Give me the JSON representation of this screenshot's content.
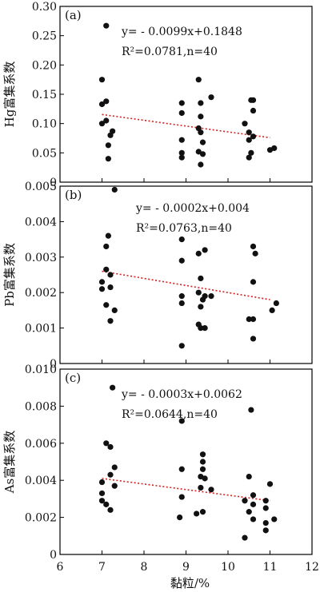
{
  "chart_data": [
    {
      "type": "scatter",
      "panel_label": "(a)",
      "ylabel": "Hg富集系数",
      "xlim": [
        6,
        12
      ],
      "ylim": [
        0,
        0.3
      ],
      "yticks": [
        "0.30",
        "0.25",
        "0.20",
        "0.15",
        "0.10",
        "0.05",
        "0"
      ],
      "yticks_values": [
        0.3,
        0.25,
        0.2,
        0.15,
        0.1,
        0.05,
        0
      ],
      "equation_line1": "y= - 0.0099x+0.1848",
      "equation_line2": "R²=0.0781,n=40",
      "trend": {
        "slope": -0.0099,
        "intercept": 0.1848,
        "x_start": 7.0,
        "x_end": 11.0
      },
      "points": [
        {
          "x": 7.1,
          "y": 0.267
        },
        {
          "x": 7.0,
          "y": 0.175
        },
        {
          "x": 7.0,
          "y": 0.133
        },
        {
          "x": 7.1,
          "y": 0.138
        },
        {
          "x": 7.0,
          "y": 0.1
        },
        {
          "x": 7.1,
          "y": 0.105
        },
        {
          "x": 7.25,
          "y": 0.087
        },
        {
          "x": 7.2,
          "y": 0.08
        },
        {
          "x": 7.15,
          "y": 0.063
        },
        {
          "x": 7.15,
          "y": 0.04
        },
        {
          "x": 8.9,
          "y": 0.135
        },
        {
          "x": 8.9,
          "y": 0.118
        },
        {
          "x": 8.9,
          "y": 0.072
        },
        {
          "x": 8.9,
          "y": 0.05
        },
        {
          "x": 8.9,
          "y": 0.042
        },
        {
          "x": 9.3,
          "y": 0.175
        },
        {
          "x": 9.35,
          "y": 0.135
        },
        {
          "x": 9.3,
          "y": 0.092
        },
        {
          "x": 9.35,
          "y": 0.112
        },
        {
          "x": 9.35,
          "y": 0.085
        },
        {
          "x": 9.4,
          "y": 0.068
        },
        {
          "x": 9.3,
          "y": 0.052
        },
        {
          "x": 9.4,
          "y": 0.048
        },
        {
          "x": 9.35,
          "y": 0.03
        },
        {
          "x": 9.6,
          "y": 0.145
        },
        {
          "x": 10.55,
          "y": 0.14
        },
        {
          "x": 10.6,
          "y": 0.14
        },
        {
          "x": 10.6,
          "y": 0.122
        },
        {
          "x": 10.4,
          "y": 0.1
        },
        {
          "x": 10.5,
          "y": 0.085
        },
        {
          "x": 10.6,
          "y": 0.078
        },
        {
          "x": 10.5,
          "y": 0.072
        },
        {
          "x": 10.55,
          "y": 0.05
        },
        {
          "x": 10.5,
          "y": 0.042
        },
        {
          "x": 11.0,
          "y": 0.055
        },
        {
          "x": 11.1,
          "y": 0.058
        }
      ]
    },
    {
      "type": "scatter",
      "panel_label": "(b)",
      "ylabel": "Pb富集系数",
      "xlim": [
        6,
        12
      ],
      "ylim": [
        0,
        0.005
      ],
      "yticks": [
        "0.005",
        "0.004",
        "0.003",
        "0.002",
        "0.001",
        "0"
      ],
      "yticks_values": [
        0.005,
        0.004,
        0.003,
        0.002,
        0.001,
        0
      ],
      "equation_line1": "y= - 0.0002x+0.004",
      "equation_line2": "R²=0.0763,n=40",
      "trend": {
        "slope": -0.0002,
        "intercept": 0.004,
        "x_start": 7.0,
        "x_end": 11.0
      },
      "points": [
        {
          "x": 7.3,
          "y": 0.0049
        },
        {
          "x": 7.15,
          "y": 0.0036
        },
        {
          "x": 7.1,
          "y": 0.0033
        },
        {
          "x": 7.1,
          "y": 0.00265
        },
        {
          "x": 7.0,
          "y": 0.0023
        },
        {
          "x": 7.2,
          "y": 0.0025
        },
        {
          "x": 7.0,
          "y": 0.0021
        },
        {
          "x": 7.2,
          "y": 0.00215
        },
        {
          "x": 7.1,
          "y": 0.00165
        },
        {
          "x": 7.3,
          "y": 0.0015
        },
        {
          "x": 7.2,
          "y": 0.0012
        },
        {
          "x": 8.9,
          "y": 0.0035
        },
        {
          "x": 8.9,
          "y": 0.0029
        },
        {
          "x": 8.9,
          "y": 0.0019
        },
        {
          "x": 8.9,
          "y": 0.0017
        },
        {
          "x": 8.9,
          "y": 0.0005
        },
        {
          "x": 9.3,
          "y": 0.0031
        },
        {
          "x": 9.45,
          "y": 0.0032
        },
        {
          "x": 9.35,
          "y": 0.0024
        },
        {
          "x": 9.3,
          "y": 0.002
        },
        {
          "x": 9.4,
          "y": 0.0018
        },
        {
          "x": 9.45,
          "y": 0.0019
        },
        {
          "x": 9.6,
          "y": 0.0019
        },
        {
          "x": 9.35,
          "y": 0.0016
        },
        {
          "x": 9.3,
          "y": 0.0011
        },
        {
          "x": 9.35,
          "y": 0.001
        },
        {
          "x": 9.45,
          "y": 0.001
        },
        {
          "x": 10.6,
          "y": 0.0033
        },
        {
          "x": 10.65,
          "y": 0.0031
        },
        {
          "x": 10.6,
          "y": 0.0023
        },
        {
          "x": 10.5,
          "y": 0.00125
        },
        {
          "x": 10.6,
          "y": 0.00125
        },
        {
          "x": 10.6,
          "y": 0.0007
        },
        {
          "x": 11.05,
          "y": 0.0015
        },
        {
          "x": 11.15,
          "y": 0.0017
        }
      ]
    },
    {
      "type": "scatter",
      "panel_label": "(c)",
      "ylabel": "As富集系数",
      "xlabel": "黏粒/%",
      "xlim": [
        6,
        12
      ],
      "xticks": [
        "6",
        "7",
        "8",
        "9",
        "10",
        "11",
        "12"
      ],
      "xticks_values": [
        6,
        7,
        8,
        9,
        10,
        11,
        12
      ],
      "ylim": [
        0,
        0.01
      ],
      "yticks": [
        "0.010",
        "0.008",
        "0.006",
        "0.004",
        "0.002",
        "0"
      ],
      "yticks_values": [
        0.01,
        0.008,
        0.006,
        0.004,
        0.002,
        0
      ],
      "equation_line1": "y= - 0.0003x+0.0062",
      "equation_line2": "R²=0.0644,n=40",
      "trend": {
        "slope": -0.0003,
        "intercept": 0.0062,
        "x_start": 7.0,
        "x_end": 11.0
      },
      "points": [
        {
          "x": 7.25,
          "y": 0.009
        },
        {
          "x": 7.1,
          "y": 0.006
        },
        {
          "x": 7.2,
          "y": 0.0058
        },
        {
          "x": 7.3,
          "y": 0.0047
        },
        {
          "x": 7.2,
          "y": 0.0043
        },
        {
          "x": 7.0,
          "y": 0.0039
        },
        {
          "x": 7.3,
          "y": 0.0037
        },
        {
          "x": 7.0,
          "y": 0.0033
        },
        {
          "x": 7.0,
          "y": 0.0029
        },
        {
          "x": 7.1,
          "y": 0.0027
        },
        {
          "x": 7.2,
          "y": 0.0024
        },
        {
          "x": 8.9,
          "y": 0.0072
        },
        {
          "x": 8.9,
          "y": 0.0046
        },
        {
          "x": 8.9,
          "y": 0.0031
        },
        {
          "x": 8.85,
          "y": 0.002
        },
        {
          "x": 9.4,
          "y": 0.0054
        },
        {
          "x": 9.4,
          "y": 0.005
        },
        {
          "x": 9.4,
          "y": 0.0046
        },
        {
          "x": 9.35,
          "y": 0.0042
        },
        {
          "x": 9.45,
          "y": 0.0041
        },
        {
          "x": 9.35,
          "y": 0.0036
        },
        {
          "x": 9.6,
          "y": 0.0035
        },
        {
          "x": 9.4,
          "y": 0.0023
        },
        {
          "x": 9.25,
          "y": 0.0022
        },
        {
          "x": 10.55,
          "y": 0.0078
        },
        {
          "x": 10.5,
          "y": 0.0042
        },
        {
          "x": 10.6,
          "y": 0.0032
        },
        {
          "x": 10.4,
          "y": 0.0029
        },
        {
          "x": 10.6,
          "y": 0.0027
        },
        {
          "x": 10.5,
          "y": 0.0023
        },
        {
          "x": 10.6,
          "y": 0.0019
        },
        {
          "x": 10.4,
          "y": 0.0009
        },
        {
          "x": 10.9,
          "y": 0.0029
        },
        {
          "x": 11.0,
          "y": 0.0038
        },
        {
          "x": 10.9,
          "y": 0.0025
        },
        {
          "x": 10.9,
          "y": 0.0017
        },
        {
          "x": 10.9,
          "y": 0.0013
        },
        {
          "x": 11.1,
          "y": 0.0019
        }
      ]
    }
  ],
  "colors": {
    "point": "#111111",
    "trend": "#d62020",
    "axis": "#000000"
  }
}
